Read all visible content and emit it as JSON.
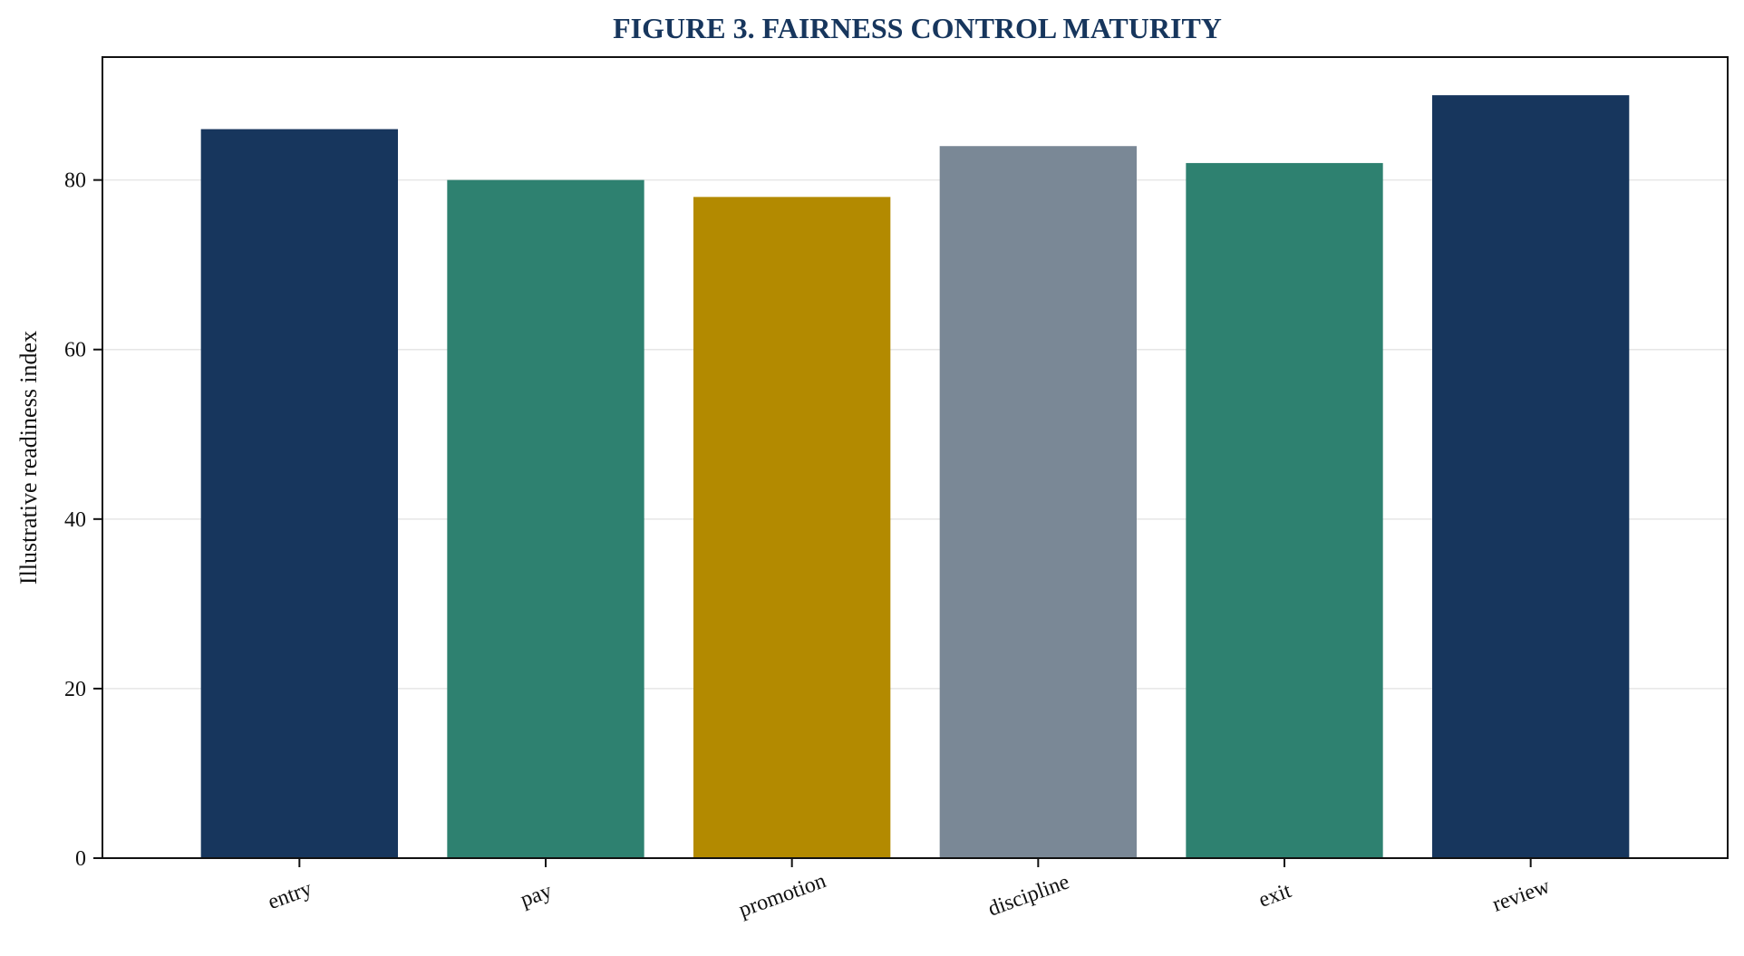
{
  "chart_data": {
    "type": "bar",
    "title": "FIGURE 3. FAIRNESS CONTROL MATURITY",
    "xlabel": "",
    "ylabel": "Illustrative readiness index",
    "categories": [
      "entry",
      "pay",
      "promotion",
      "discipline",
      "exit",
      "review"
    ],
    "values": [
      86,
      80,
      78,
      84,
      82,
      90
    ],
    "colors": [
      "#17365d",
      "#2e8170",
      "#b38a00",
      "#7a8896",
      "#2e8170",
      "#17365d"
    ],
    "yticks": [
      0,
      20,
      40,
      60,
      80
    ],
    "ylim": [
      0,
      94.5
    ],
    "grid": "horizontal",
    "legend": "none",
    "title_color": "#17365d",
    "grid_color": "#e6e6e6",
    "axis_color": "#111111"
  }
}
